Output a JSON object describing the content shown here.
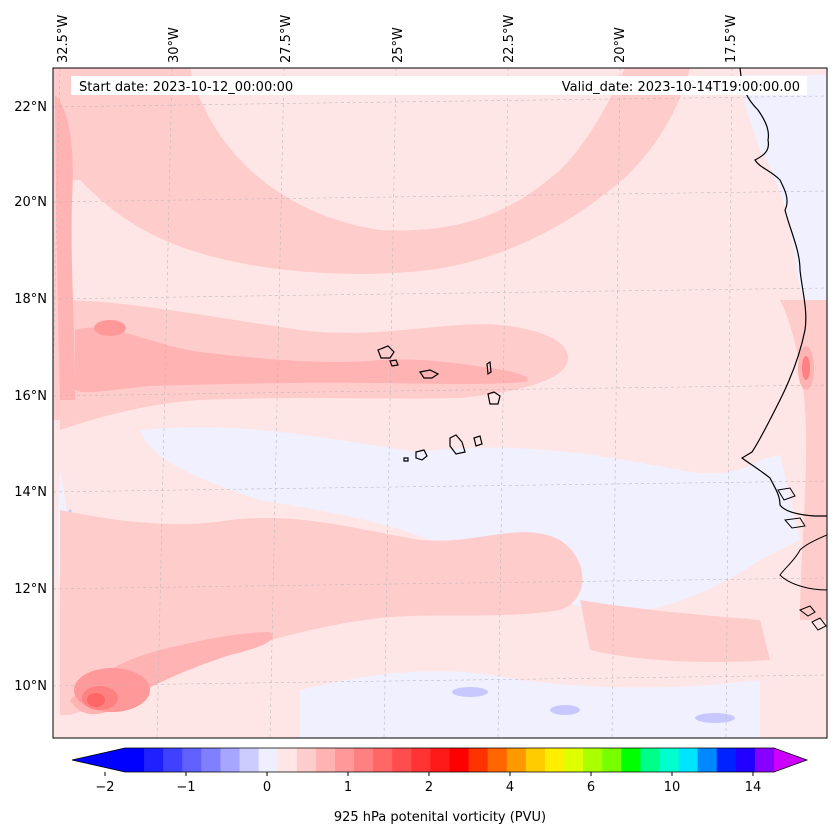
{
  "header": {
    "start_date": "Start date: 2023-10-12_00:00:00",
    "valid_date": "Valid_date: 2023-10-14T19:00:00.00"
  },
  "axes": {
    "lon_labels": [
      "32.5°W",
      "30°W",
      "27.5°W",
      "25°W",
      "22.5°W",
      "20°W",
      "17.5°W"
    ],
    "lat_labels": [
      "22°N",
      "20°N",
      "18°N",
      "16°N",
      "14°N",
      "12°N",
      "10°N"
    ]
  },
  "colorbar": {
    "label": "925 hPa potenital vorticity (PVU)",
    "tick_labels": [
      "−2",
      "−1",
      "0",
      "1",
      "2",
      "4",
      "6",
      "10",
      "14"
    ],
    "colors": [
      "#0000ff",
      "#2020ff",
      "#4040ff",
      "#6060ff",
      "#8080ff",
      "#a6a6ff",
      "#ccccff",
      "#eeeeff",
      "#ffe6e6",
      "#ffcccc",
      "#ffb3b3",
      "#ff9999",
      "#ff8080",
      "#ff6666",
      "#ff4d4d",
      "#ff3333",
      "#ff1a1a",
      "#ff0000",
      "#ff3300",
      "#ff6600",
      "#ff9900",
      "#ffcc00",
      "#ffee00",
      "#ddff00",
      "#aaff00",
      "#77ff00",
      "#00ff00",
      "#00ff88",
      "#00ffcc",
      "#00e5ff",
      "#0088ff",
      "#0022ff",
      "#2200ff",
      "#8800ff"
    ],
    "under_color": "#0000ff",
    "over_color": "#cc00ff"
  }
}
